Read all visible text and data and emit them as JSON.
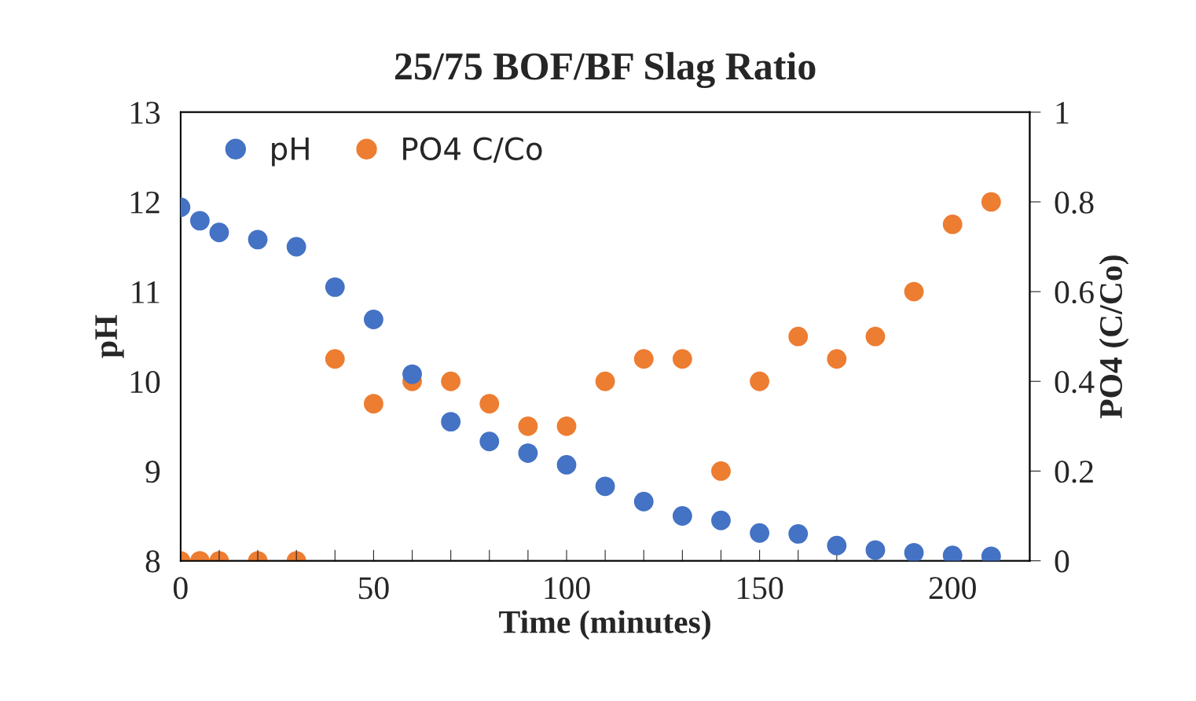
{
  "chart_data": {
    "type": "scatter",
    "title": "25/75 BOF/BF Slag Ratio",
    "xlabel": "Time (minutes)",
    "ylabel": "pH",
    "y2label": "PO4 (C/Co)",
    "x": [
      0,
      5,
      10,
      20,
      30,
      40,
      50,
      60,
      70,
      80,
      90,
      100,
      110,
      120,
      130,
      140,
      150,
      160,
      170,
      180,
      190,
      200,
      210
    ],
    "series": [
      {
        "name": "pH",
        "color": "#4472c4",
        "values": [
          11.94,
          11.79,
          11.66,
          11.58,
          11.5,
          11.05,
          10.69,
          10.08,
          9.55,
          9.33,
          9.2,
          9.07,
          8.83,
          8.66,
          8.5,
          8.45,
          8.31,
          8.3,
          8.17,
          8.12,
          8.09,
          8.06,
          8.05
        ]
      },
      {
        "name": "PO4 C/Co",
        "color": "#ed7d31",
        "axis": "y2",
        "values": [
          0,
          0,
          0,
          0,
          0,
          0.45,
          0.35,
          0.4,
          0.4,
          0.35,
          0.3,
          0.3,
          0.4,
          0.45,
          0.45,
          0.2,
          0.4,
          0.5,
          0.45,
          0.5,
          0.6,
          0.75,
          0.8
        ]
      }
    ],
    "xlim": [
      0,
      220
    ],
    "xticks": [
      0,
      {
        "value": 10,
        "label": null
      },
      {
        "value": 20,
        "label": null
      },
      {
        "value": 30,
        "label": null
      },
      {
        "value": 40,
        "label": null
      },
      50,
      {
        "value": 60,
        "label": null
      },
      {
        "value": 70,
        "label": null
      },
      {
        "value": 80,
        "label": null
      },
      {
        "value": 90,
        "label": null
      },
      100,
      {
        "value": 110,
        "label": null
      },
      {
        "value": 120,
        "label": null
      },
      {
        "value": 130,
        "label": null
      },
      {
        "value": 140,
        "label": null
      },
      150,
      {
        "value": 160,
        "label": null
      },
      {
        "value": 170,
        "label": null
      },
      {
        "value": 180,
        "label": null
      },
      {
        "value": 190,
        "label": null
      },
      200,
      {
        "value": 210,
        "label": null
      }
    ],
    "ylim": [
      8,
      13
    ],
    "yticks": [
      8,
      9,
      10,
      11,
      12,
      13
    ],
    "y2lim": [
      0,
      1
    ],
    "y2ticks": [
      0,
      0.2,
      0.4,
      0.6,
      0.8,
      1
    ],
    "marker": "circle",
    "legend": "top left",
    "grid": false
  }
}
